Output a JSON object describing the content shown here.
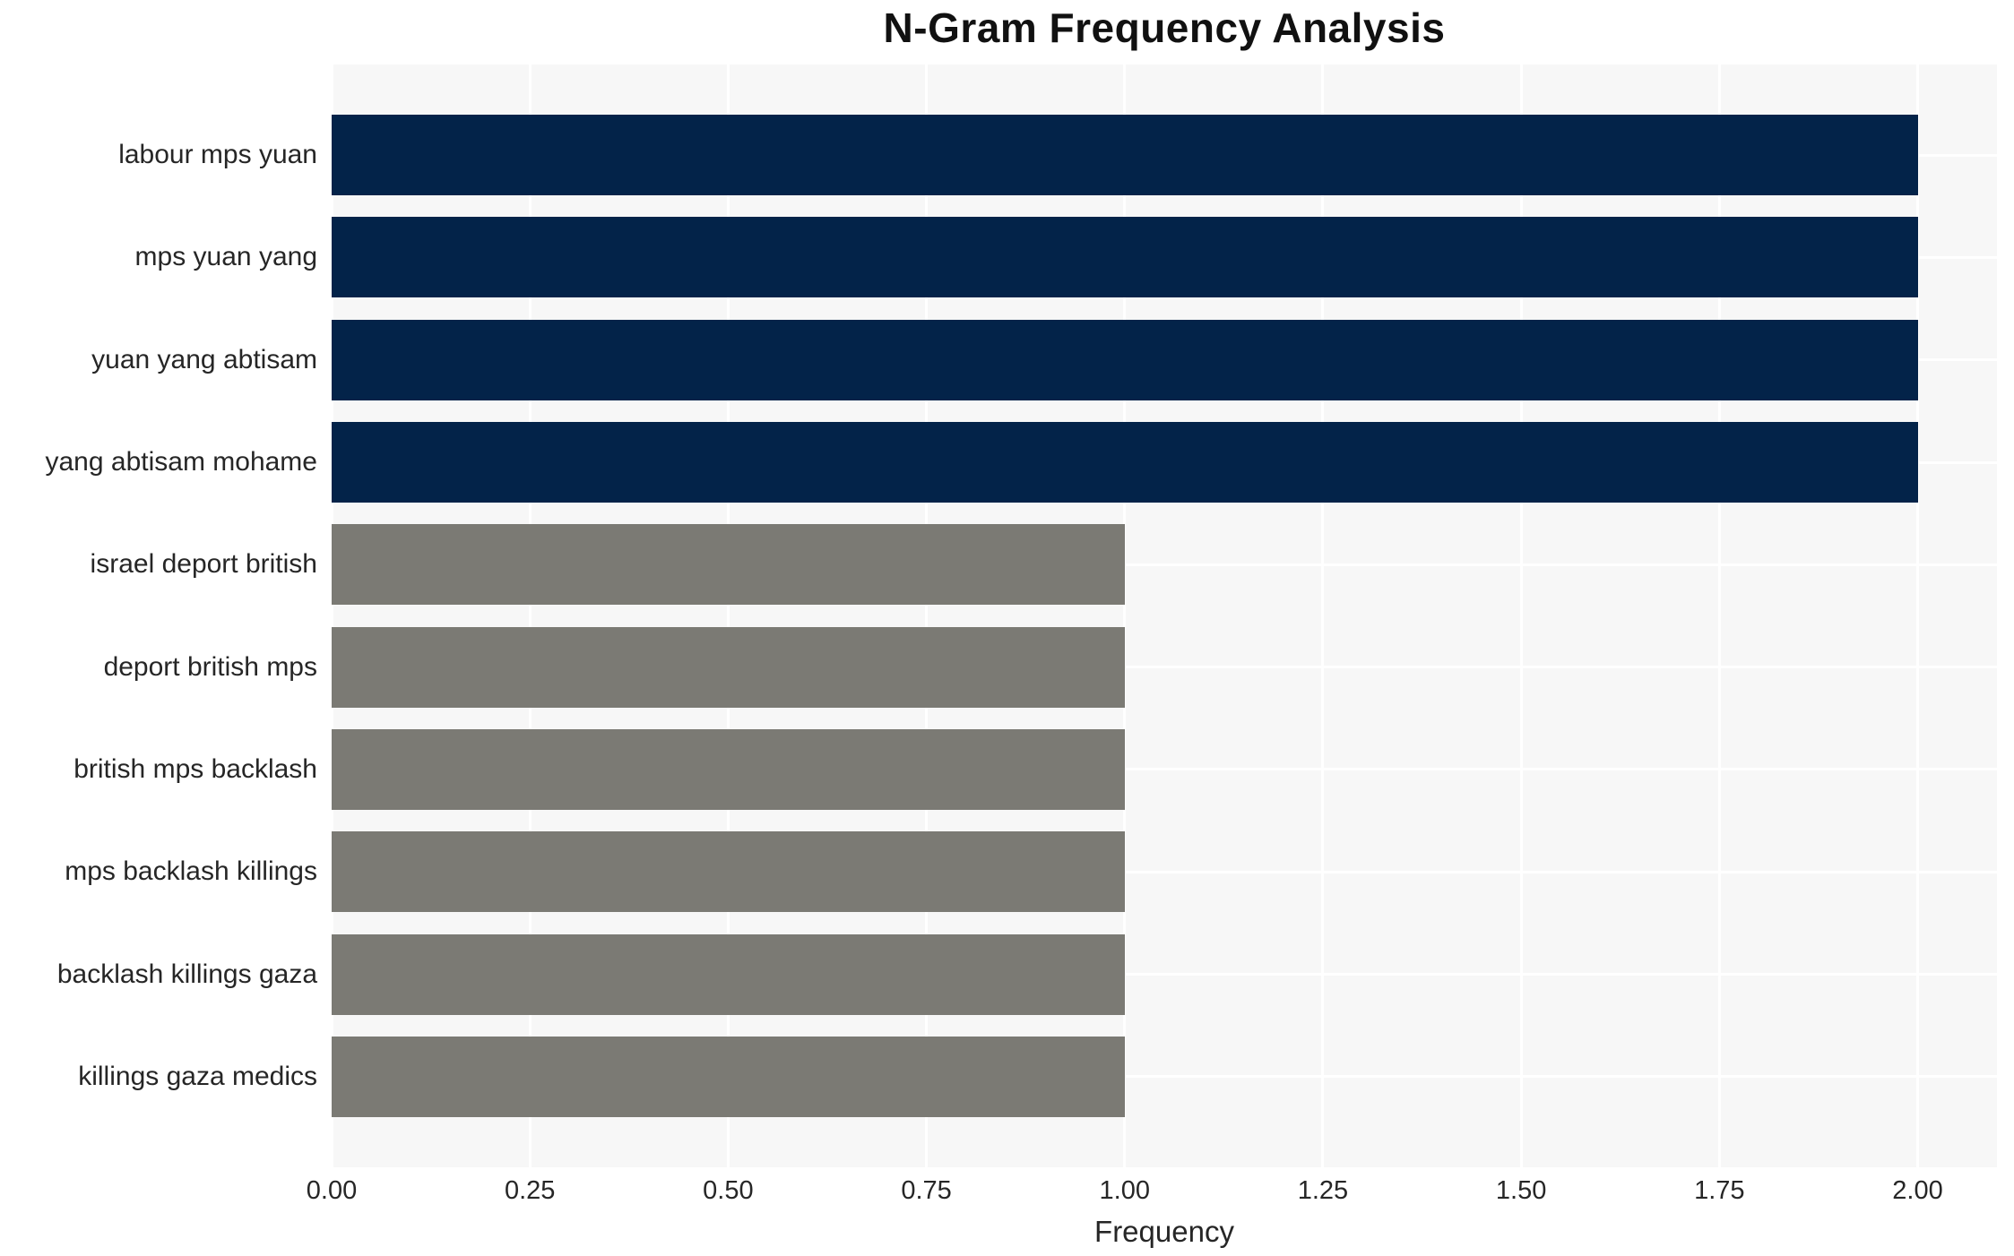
{
  "figure": {
    "background": "#ffffff"
  },
  "chart_data": {
    "type": "bar",
    "orientation": "horizontal",
    "title": "N-Gram Frequency Analysis",
    "xlabel": "Frequency",
    "ylabel": "",
    "categories": [
      "labour mps yuan",
      "mps yuan yang",
      "yuan yang abtisam",
      "yang abtisam mohame",
      "israel deport british",
      "deport british mps",
      "british mps backlash",
      "mps backlash killings",
      "backlash killings gaza",
      "killings gaza medics"
    ],
    "values": [
      2,
      2,
      2,
      2,
      1,
      1,
      1,
      1,
      1,
      1
    ],
    "xticks": [
      {
        "value": 0.0,
        "label": "0.00"
      },
      {
        "value": 0.25,
        "label": "0.25"
      },
      {
        "value": 0.5,
        "label": "0.50"
      },
      {
        "value": 0.75,
        "label": "0.75"
      },
      {
        "value": 1.0,
        "label": "1.00"
      },
      {
        "value": 1.25,
        "label": "1.25"
      },
      {
        "value": 1.5,
        "label": "1.50"
      },
      {
        "value": 1.75,
        "label": "1.75"
      },
      {
        "value": 2.0,
        "label": "2.00"
      }
    ],
    "xlim": [
      0,
      2.1
    ],
    "grid": true,
    "legend_position": "none",
    "colors": {
      "high_frequency_bar": "#032349",
      "low_frequency_bar": "#7b7a74",
      "high_threshold_value": 2,
      "plot_background": "#f7f7f7",
      "gridline": "#ffffff",
      "title_text": "#111111",
      "axis_text": "#262626"
    }
  }
}
